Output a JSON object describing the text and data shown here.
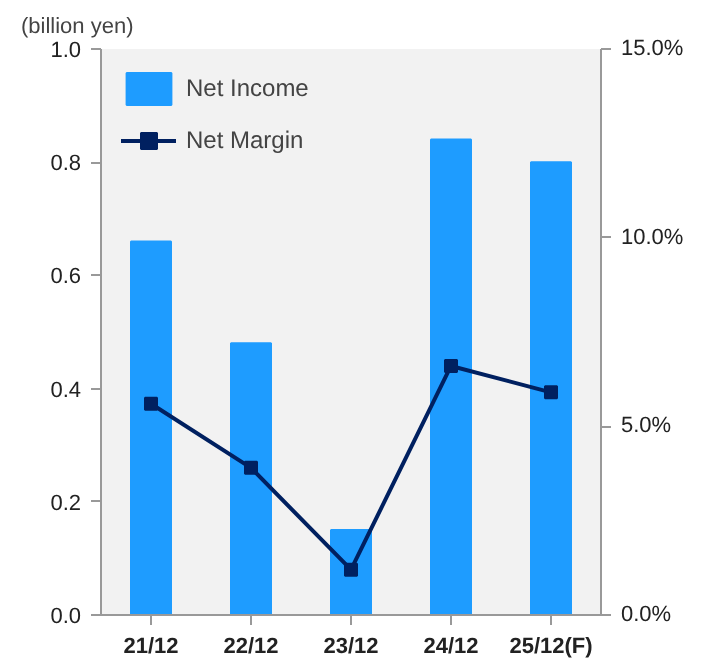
{
  "chart_data": {
    "type": "bar",
    "ylabel": "(billion yen)",
    "categories": [
      "21/12",
      "22/12",
      "23/12",
      "24/12",
      "25/12(F)"
    ],
    "series": [
      {
        "name": "Net Income",
        "color": "#1e9cff",
        "values": [
          0.66,
          0.48,
          0.15,
          0.84,
          0.8
        ]
      },
      {
        "name": "Net Margin",
        "type": "line",
        "axis": "y2",
        "color": "#002060",
        "values": [
          5.6,
          3.9,
          1.2,
          6.6,
          5.9
        ]
      }
    ],
    "ylim": [
      0,
      1.0
    ],
    "yticks": [
      {
        "value": 0,
        "label": "0.0"
      },
      {
        "value": 0.2,
        "label": "0.2"
      },
      {
        "value": 0.4,
        "label": "0.4"
      },
      {
        "value": 0.6,
        "label": "0.6"
      },
      {
        "value": 0.8,
        "label": "0.8"
      },
      {
        "value": 1.0,
        "label": "1.0"
      }
    ],
    "y2lim": [
      0,
      15
    ],
    "y2ticks": [
      {
        "value": 0,
        "label": "0.0%"
      },
      {
        "value": 5,
        "label": "5.0%"
      },
      {
        "value": 10,
        "label": "10.0%"
      },
      {
        "value": 15,
        "label": "15.0%"
      }
    ],
    "grid": false,
    "legend": "top left",
    "marker": "square",
    "line_style": "solid"
  }
}
